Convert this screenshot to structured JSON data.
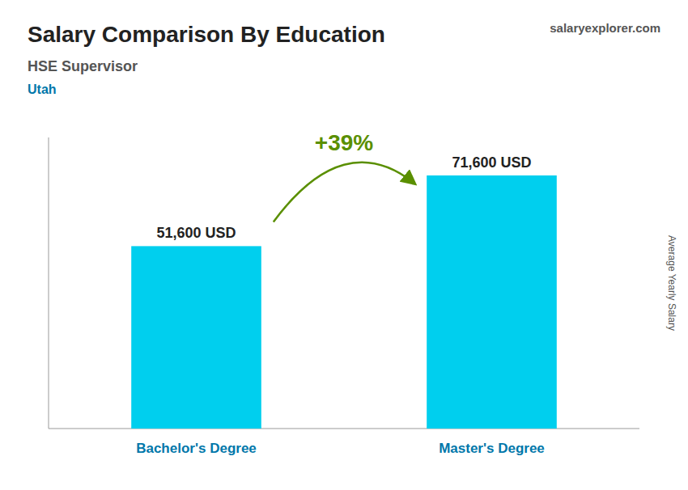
{
  "chart_data": {
    "type": "bar",
    "title": "Salary Comparison By Education",
    "subtitle": "HSE Supervisor",
    "annotations": [
      "Utah",
      "+39%",
      "salaryexplorer.com"
    ],
    "ylabel": "Average Yearly Salary",
    "categories": [
      "Bachelor's Degree",
      "Master's Degree"
    ],
    "values": [
      51600,
      71600
    ],
    "value_labels": [
      "51,600 USD",
      "71,600 USD"
    ],
    "color": "#00CFEE",
    "ylim": [
      0,
      82340
    ],
    "grid": false,
    "data_labels": true,
    "tick_labels": "x"
  }
}
